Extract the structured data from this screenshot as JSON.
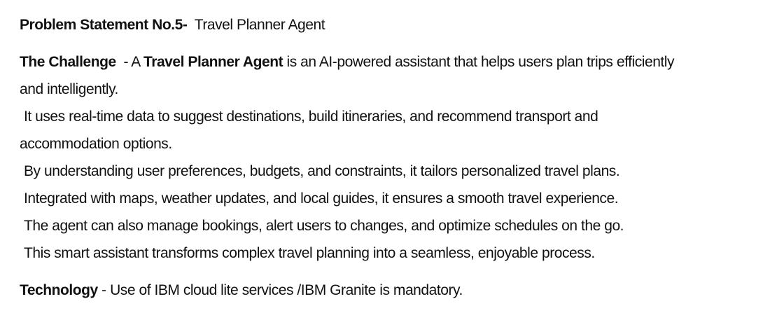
{
  "problem": {
    "label": "Problem Statement No.5-",
    "sep": "  ",
    "title": "Travel Planner Agent"
  },
  "challenge": {
    "label": "The Challenge",
    "dash": "  - A ",
    "agent_name": "Travel Planner Agent",
    "line1_rest": " is an AI-powered assistant that helps users plan trips efficiently",
    "line2": "and intelligently.",
    "line3": "It uses real-time data to suggest destinations, build itineraries, and recommend transport and",
    "line4": "accommodation options.",
    "line5": "By understanding user preferences, budgets, and constraints, it tailors personalized travel plans.",
    "line6": "Integrated with maps, weather updates, and local guides, it ensures a smooth travel experience.",
    "line7": "The agent can also manage bookings, alert users to changes, and optimize schedules on the go.",
    "line8": "This smart assistant transforms complex travel planning into a seamless, enjoyable process."
  },
  "technology": {
    "label": "Technology",
    "text": " - Use of IBM cloud lite services /IBM Granite is mandatory."
  }
}
